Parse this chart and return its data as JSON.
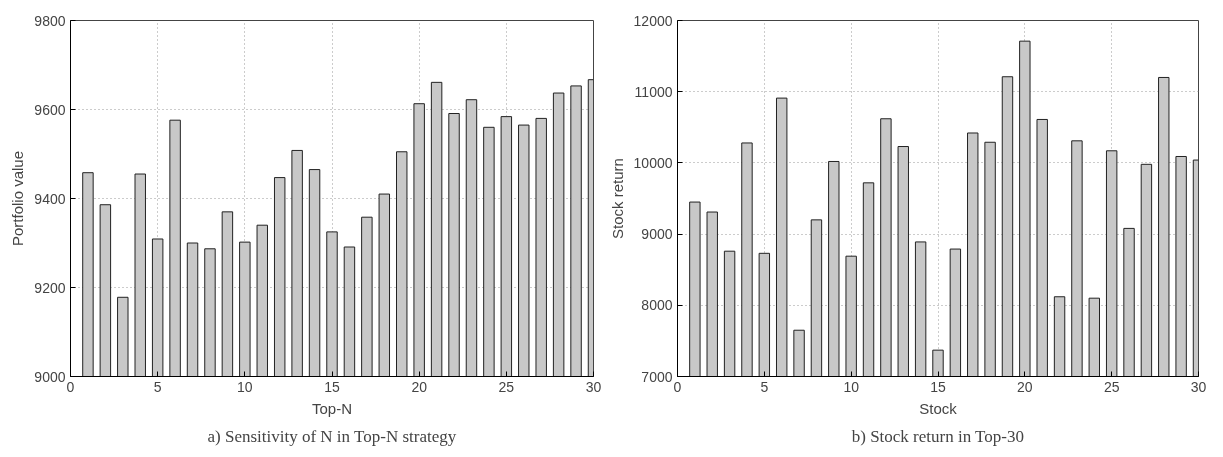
{
  "chart_data": [
    {
      "type": "bar",
      "x": [
        1,
        2,
        3,
        4,
        5,
        6,
        7,
        8,
        9,
        10,
        11,
        12,
        13,
        14,
        15,
        16,
        17,
        18,
        19,
        20,
        21,
        22,
        23,
        24,
        25,
        26,
        27,
        28,
        29,
        30
      ],
      "values": [
        9458,
        9386,
        9178,
        9455,
        9309,
        9576,
        9300,
        9287,
        9370,
        9302,
        9340,
        9447,
        9508,
        9465,
        9325,
        9291,
        9358,
        9410,
        9505,
        9613,
        9661,
        9591,
        9622,
        9560,
        9584,
        9565,
        9580,
        9637,
        9653,
        9667
      ],
      "color": "#c8c8c8",
      "xlabel": "Top-N",
      "ylabel": "Portfolio value",
      "xlim": [
        0,
        30
      ],
      "xticks": [
        0,
        5,
        10,
        15,
        20,
        25,
        30
      ],
      "ylim": [
        9000,
        9800
      ],
      "yticks": [
        9000,
        9200,
        9400,
        9600,
        9800
      ],
      "grid": true,
      "annotations": [
        "a) Sensitivity of N in Top-N strategy"
      ]
    },
    {
      "type": "bar",
      "x": [
        1,
        2,
        3,
        4,
        5,
        6,
        7,
        8,
        9,
        10,
        11,
        12,
        13,
        14,
        15,
        16,
        17,
        18,
        19,
        20,
        21,
        22,
        23,
        24,
        25,
        26,
        27,
        28,
        29,
        30
      ],
      "values": [
        9450,
        9310,
        8760,
        10280,
        8730,
        10910,
        7650,
        9200,
        10020,
        8690,
        9720,
        10620,
        10230,
        8890,
        7370,
        8790,
        10420,
        10290,
        11210,
        11710,
        10610,
        8120,
        10310,
        8100,
        10170,
        9080,
        9980,
        11200,
        10090,
        10040
      ],
      "color": "#c8c8c8",
      "xlabel": "Stock",
      "ylabel": "Stock return",
      "xlim": [
        0,
        30
      ],
      "xticks": [
        0,
        5,
        10,
        15,
        20,
        25,
        30
      ],
      "ylim": [
        7000,
        12000
      ],
      "yticks": [
        7000,
        8000,
        9000,
        10000,
        11000,
        12000
      ],
      "grid": true,
      "annotations": [
        "b) Stock return in Top-30"
      ]
    }
  ]
}
